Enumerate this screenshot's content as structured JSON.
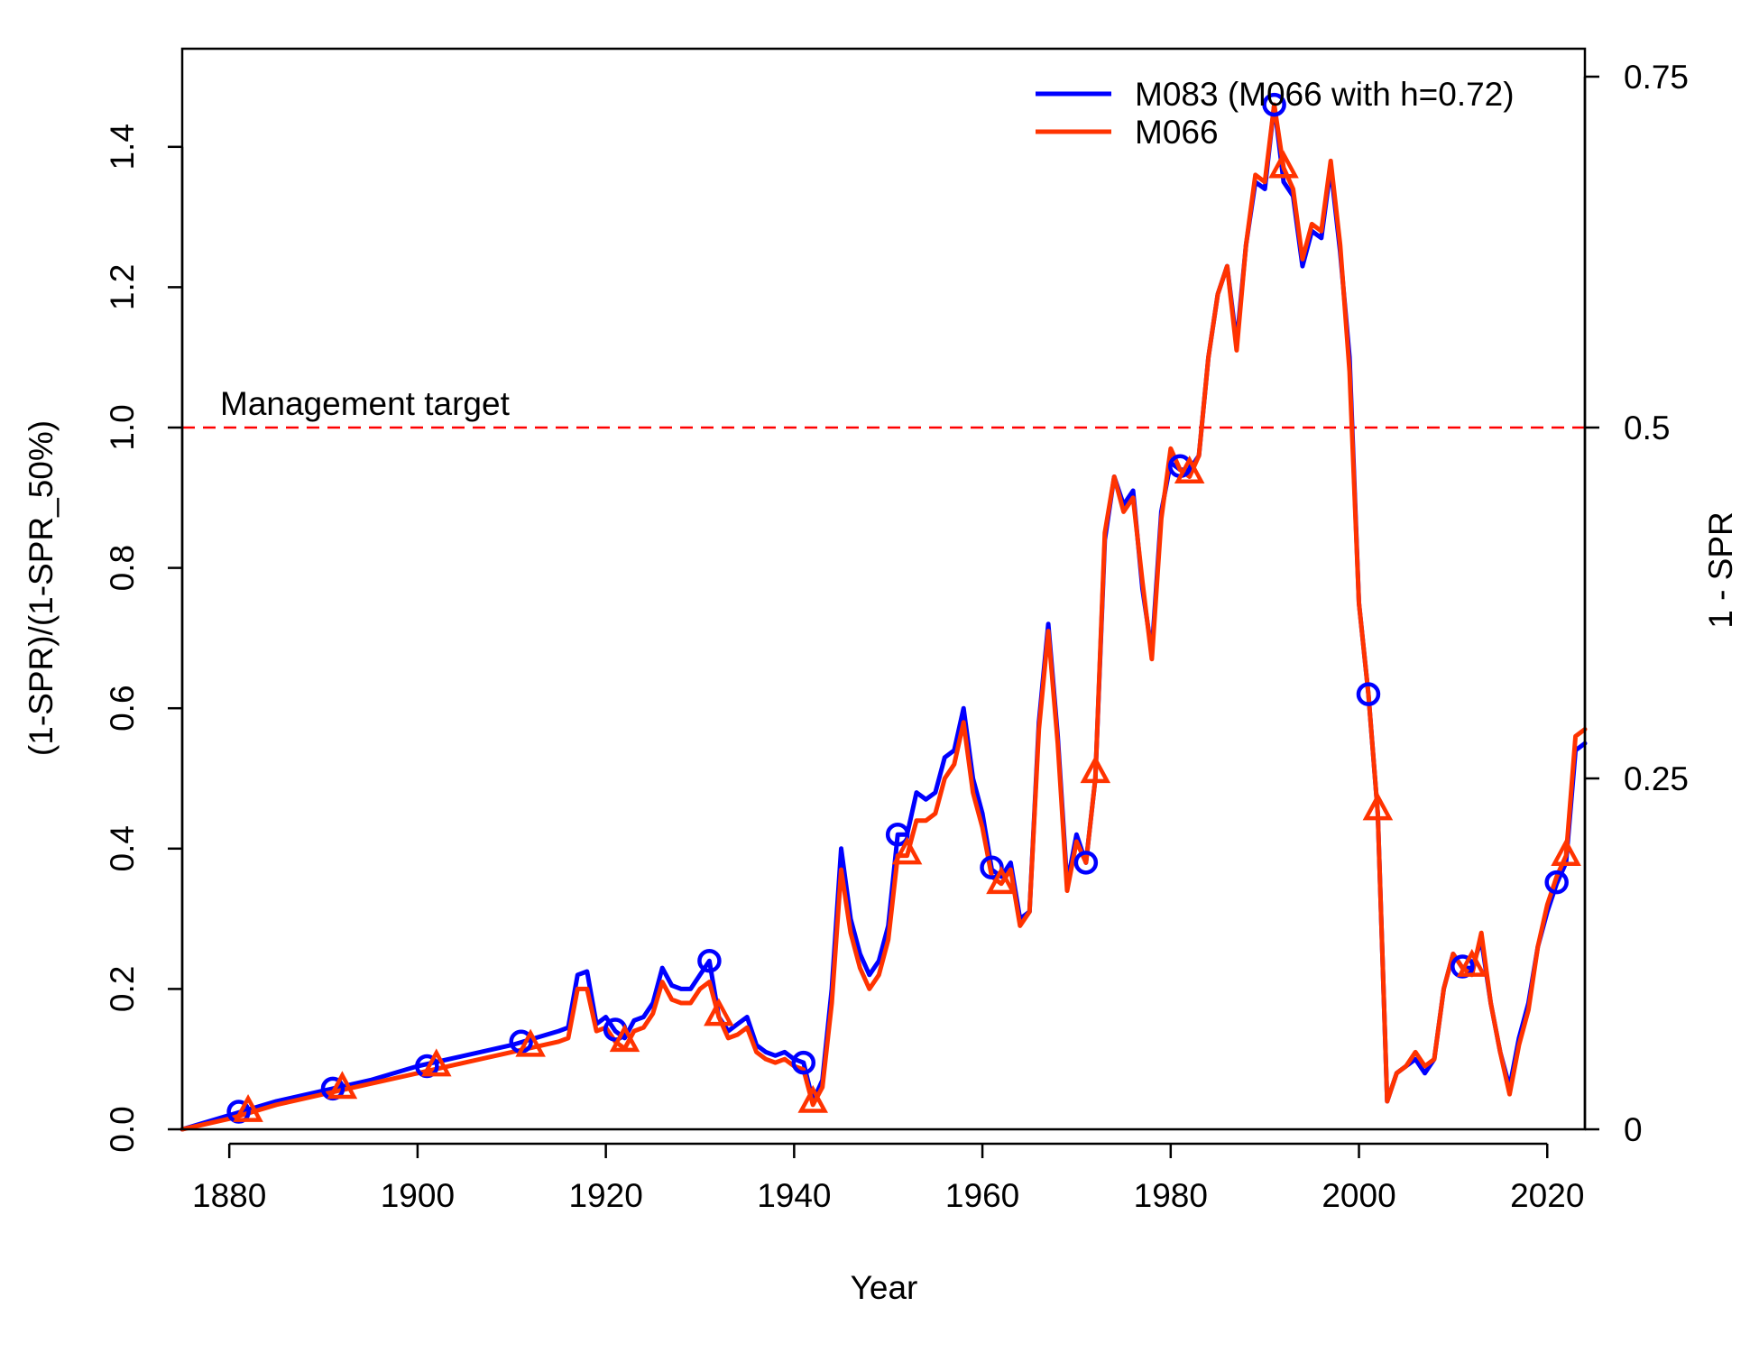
{
  "chart_data": {
    "type": "line",
    "title": "",
    "xlabel": "Year",
    "ylabel": "(1-SPR)/(1-SPR_50%)",
    "y2label": "1 - SPR",
    "xlim": [
      1875,
      2024
    ],
    "ylim": [
      0,
      1.5
    ],
    "y2lim": [
      0,
      0.75
    ],
    "x_ticks": [
      1880,
      1900,
      1920,
      1940,
      1960,
      1980,
      2000,
      2020
    ],
    "y_ticks": [
      {
        "value": 0.0,
        "label": "0.0"
      },
      {
        "value": 0.2,
        "label": "0.2"
      },
      {
        "value": 0.4,
        "label": "0.4"
      },
      {
        "value": 0.6,
        "label": "0.6"
      },
      {
        "value": 0.8,
        "label": "0.8"
      },
      {
        "value": 1.0,
        "label": "1.0"
      },
      {
        "value": 1.2,
        "label": "1.2"
      },
      {
        "value": 1.4,
        "label": "1.4"
      }
    ],
    "y2_ticks": [
      {
        "value": 0,
        "label": "0"
      },
      {
        "value": 0.25,
        "label": "0.25"
      },
      {
        "value": 0.5,
        "label": "0.5"
      },
      {
        "value": 0.75,
        "label": "0.75"
      }
    ],
    "grid": false,
    "legend_position": "top-right",
    "reference_line": {
      "y": 1.0,
      "label": "Management target",
      "color": "#ff0000",
      "style": "dashed"
    },
    "series": [
      {
        "name": "M083 (M066 with h=0.72)",
        "color": "#0000ff",
        "marker": "circle",
        "x": [
          1875,
          1880,
          1885,
          1890,
          1895,
          1900,
          1905,
          1910,
          1915,
          1916,
          1917,
          1918,
          1919,
          1920,
          1921,
          1922,
          1923,
          1924,
          1925,
          1926,
          1927,
          1928,
          1929,
          1930,
          1931,
          1932,
          1933,
          1934,
          1935,
          1936,
          1937,
          1938,
          1939,
          1940,
          1941,
          1942,
          1943,
          1944,
          1945,
          1946,
          1947,
          1948,
          1949,
          1950,
          1951,
          1952,
          1953,
          1954,
          1955,
          1956,
          1957,
          1958,
          1959,
          1960,
          1961,
          1962,
          1963,
          1964,
          1965,
          1966,
          1967,
          1968,
          1969,
          1970,
          1971,
          1972,
          1973,
          1974,
          1975,
          1976,
          1977,
          1978,
          1979,
          1980,
          1981,
          1982,
          1983,
          1984,
          1985,
          1986,
          1987,
          1988,
          1989,
          1990,
          1991,
          1992,
          1993,
          1994,
          1995,
          1996,
          1997,
          1998,
          1999,
          2000,
          2001,
          2002,
          2003,
          2004,
          2005,
          2006,
          2007,
          2008,
          2009,
          2010,
          2011,
          2012,
          2013,
          2014,
          2015,
          2016,
          2017,
          2018,
          2019,
          2020,
          2021,
          2022,
          2023,
          2024
        ],
        "y": [
          0.0,
          0.02,
          0.04,
          0.055,
          0.07,
          0.09,
          0.105,
          0.12,
          0.14,
          0.145,
          0.22,
          0.225,
          0.15,
          0.16,
          0.14,
          0.13,
          0.155,
          0.16,
          0.18,
          0.23,
          0.205,
          0.2,
          0.2,
          0.22,
          0.24,
          0.16,
          0.14,
          0.15,
          0.16,
          0.12,
          0.11,
          0.105,
          0.11,
          0.1,
          0.095,
          0.04,
          0.07,
          0.2,
          0.4,
          0.3,
          0.25,
          0.22,
          0.24,
          0.29,
          0.42,
          0.42,
          0.48,
          0.47,
          0.48,
          0.53,
          0.54,
          0.6,
          0.5,
          0.45,
          0.37,
          0.36,
          0.38,
          0.3,
          0.31,
          0.58,
          0.72,
          0.56,
          0.35,
          0.42,
          0.38,
          0.5,
          0.84,
          0.93,
          0.89,
          0.91,
          0.77,
          0.68,
          0.88,
          0.95,
          0.94,
          0.94,
          0.96,
          1.1,
          1.19,
          1.23,
          1.12,
          1.26,
          1.35,
          1.34,
          1.46,
          1.35,
          1.33,
          1.23,
          1.28,
          1.27,
          1.37,
          1.25,
          1.1,
          0.75,
          0.62,
          0.45,
          0.04,
          0.08,
          0.09,
          0.1,
          0.08,
          0.1,
          0.2,
          0.25,
          0.23,
          0.23,
          0.27,
          0.18,
          0.11,
          0.06,
          0.13,
          0.18,
          0.26,
          0.31,
          0.35,
          0.38,
          0.54,
          0.55
        ]
      },
      {
        "name": "M066",
        "color": "#ff3300",
        "marker": "triangle",
        "x": [
          1875,
          1880,
          1885,
          1890,
          1895,
          1900,
          1905,
          1910,
          1915,
          1916,
          1917,
          1918,
          1919,
          1920,
          1921,
          1922,
          1923,
          1924,
          1925,
          1926,
          1927,
          1928,
          1929,
          1930,
          1931,
          1932,
          1933,
          1934,
          1935,
          1936,
          1937,
          1938,
          1939,
          1940,
          1941,
          1942,
          1943,
          1944,
          1945,
          1946,
          1947,
          1948,
          1949,
          1950,
          1951,
          1952,
          1953,
          1954,
          1955,
          1956,
          1957,
          1958,
          1959,
          1960,
          1961,
          1962,
          1963,
          1964,
          1965,
          1966,
          1967,
          1968,
          1969,
          1970,
          1971,
          1972,
          1973,
          1974,
          1975,
          1976,
          1977,
          1978,
          1979,
          1980,
          1981,
          1982,
          1983,
          1984,
          1985,
          1986,
          1987,
          1988,
          1989,
          1990,
          1991,
          1992,
          1993,
          1994,
          1995,
          1996,
          1997,
          1998,
          1999,
          2000,
          2001,
          2002,
          2003,
          2004,
          2005,
          2006,
          2007,
          2008,
          2009,
          2010,
          2011,
          2012,
          2013,
          2014,
          2015,
          2016,
          2017,
          2018,
          2019,
          2020,
          2021,
          2022,
          2023,
          2024
        ],
        "y": [
          0.0,
          0.015,
          0.035,
          0.05,
          0.065,
          0.08,
          0.095,
          0.11,
          0.125,
          0.13,
          0.2,
          0.2,
          0.14,
          0.145,
          0.125,
          0.115,
          0.14,
          0.145,
          0.165,
          0.21,
          0.185,
          0.18,
          0.18,
          0.2,
          0.21,
          0.16,
          0.13,
          0.135,
          0.145,
          0.11,
          0.1,
          0.095,
          0.1,
          0.09,
          0.085,
          0.035,
          0.06,
          0.18,
          0.37,
          0.28,
          0.23,
          0.2,
          0.22,
          0.27,
          0.39,
          0.39,
          0.44,
          0.44,
          0.45,
          0.5,
          0.52,
          0.58,
          0.48,
          0.43,
          0.36,
          0.35,
          0.37,
          0.29,
          0.31,
          0.57,
          0.71,
          0.55,
          0.34,
          0.41,
          0.38,
          0.5,
          0.85,
          0.93,
          0.88,
          0.9,
          0.78,
          0.67,
          0.87,
          0.97,
          0.94,
          0.93,
          0.96,
          1.1,
          1.19,
          1.23,
          1.11,
          1.26,
          1.36,
          1.35,
          1.46,
          1.37,
          1.34,
          1.24,
          1.29,
          1.28,
          1.38,
          1.26,
          1.08,
          0.75,
          0.62,
          0.45,
          0.04,
          0.08,
          0.09,
          0.11,
          0.09,
          0.1,
          0.2,
          0.25,
          0.23,
          0.22,
          0.28,
          0.18,
          0.11,
          0.05,
          0.12,
          0.17,
          0.26,
          0.32,
          0.36,
          0.39,
          0.56,
          0.57
        ]
      }
    ],
    "circle_markers": {
      "x": [
        1881,
        1891,
        1901,
        1911,
        1921,
        1931,
        1941,
        1951,
        1961,
        1971,
        1981,
        1991,
        2001,
        2011,
        2021
      ],
      "y": [
        0.025,
        0.058,
        0.09,
        0.125,
        0.142,
        0.24,
        0.095,
        0.42,
        0.373,
        0.38,
        0.945,
        1.46,
        0.62,
        0.232,
        0.352
      ]
    },
    "triangle_markers": {
      "x": [
        1882,
        1892,
        1902,
        1912,
        1922,
        1932,
        1942,
        1952,
        1962,
        1972,
        1982,
        1992,
        2002,
        2012,
        2022
      ],
      "y": [
        0.025,
        0.058,
        0.09,
        0.118,
        0.125,
        0.162,
        0.038,
        0.392,
        0.35,
        0.508,
        0.935,
        1.37,
        0.455,
        0.232,
        0.39
      ]
    }
  }
}
